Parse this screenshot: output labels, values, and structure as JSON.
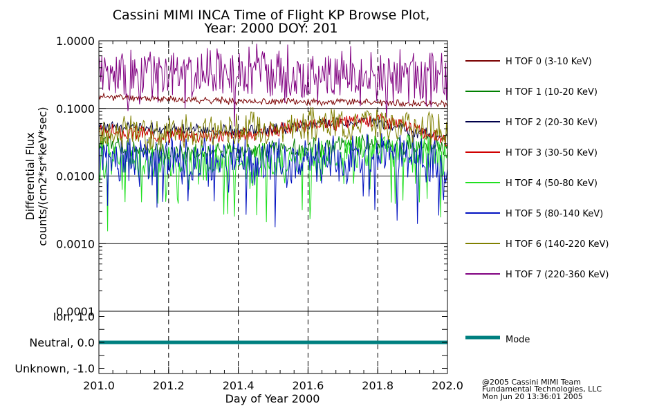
{
  "chart_data": {
    "type": "line",
    "title": "Cassini MIMI INCA Time of Flight KP Browse Plot,",
    "subtitle": "Year: 2000 DOY: 201",
    "xlabel": "Day of Year 2000",
    "ylabel": "Differential Flux",
    "ylabel2": "counts/(cm2*sr*keV*sec)",
    "xlim": [
      201.0,
      202.0
    ],
    "ylim": [
      0.0001,
      1.0
    ],
    "yscale": "log",
    "x_ticks": [
      201.0,
      201.2,
      201.4,
      201.6,
      201.8,
      202.0
    ],
    "x_tick_labels": [
      "201.0",
      "201.2",
      "201.4",
      "201.6",
      "201.8",
      "202.0"
    ],
    "y_ticks": [
      1.0,
      0.1,
      0.01,
      0.001,
      0.0001
    ],
    "y_tick_labels": [
      "1.0000",
      "0.1000",
      "0.0100",
      "0.0010",
      "0.0001"
    ],
    "grid": true,
    "legend_position": "right",
    "series": [
      {
        "name": "H TOF 0 (3-10 KeV)",
        "color": "#7a0000",
        "base": [
          [
            201.0,
            0.15
          ],
          [
            201.25,
            0.135
          ],
          [
            201.5,
            0.125
          ],
          [
            201.75,
            0.125
          ],
          [
            202.0,
            0.115
          ]
        ],
        "noise": 0.04,
        "spikes": 0.0,
        "seed": 11
      },
      {
        "name": "H TOF 1 (10-20 KeV)",
        "color": "#008000",
        "base": [
          [
            201.0,
            0.03
          ],
          [
            201.2,
            0.022
          ],
          [
            201.45,
            0.024
          ],
          [
            201.6,
            0.025
          ],
          [
            201.8,
            0.03
          ],
          [
            202.0,
            0.025
          ]
        ],
        "noise": 0.12,
        "spikes": 0.0,
        "seed": 12
      },
      {
        "name": "H TOF 2 (20-30 KeV)",
        "color": "#00004a",
        "base": [
          [
            201.0,
            0.055
          ],
          [
            201.2,
            0.05
          ],
          [
            201.4,
            0.045
          ],
          [
            201.6,
            0.055
          ],
          [
            201.78,
            0.065
          ],
          [
            202.0,
            0.035
          ]
        ],
        "noise": 0.07,
        "spikes": 0.0,
        "seed": 13
      },
      {
        "name": "H TOF 3 (30-50 KeV)",
        "color": "#d00000",
        "base": [
          [
            201.0,
            0.045
          ],
          [
            201.2,
            0.04
          ],
          [
            201.4,
            0.04
          ],
          [
            201.6,
            0.055
          ],
          [
            201.8,
            0.07
          ],
          [
            202.0,
            0.035
          ]
        ],
        "noise": 0.09,
        "spikes": 0.0,
        "seed": 14
      },
      {
        "name": "H TOF 4 (50-80 KeV)",
        "color": "#20e020",
        "base": [
          [
            201.0,
            0.017
          ],
          [
            201.25,
            0.015
          ],
          [
            201.5,
            0.016
          ],
          [
            201.7,
            0.02
          ],
          [
            201.85,
            0.025
          ],
          [
            202.0,
            0.018
          ]
        ],
        "noise": 0.22,
        "spikes": 0.05,
        "seed": 15
      },
      {
        "name": "H TOF 5 (80-140 KeV)",
        "color": "#0010c0",
        "base": [
          [
            201.0,
            0.018
          ],
          [
            201.25,
            0.016
          ],
          [
            201.5,
            0.017
          ],
          [
            201.7,
            0.02
          ],
          [
            201.85,
            0.022
          ],
          [
            202.0,
            0.016
          ]
        ],
        "noise": 0.3,
        "spikes": 0.07,
        "seed": 16
      },
      {
        "name": "H TOF 6 (140-220 KeV)",
        "color": "#808000",
        "base": [
          [
            201.0,
            0.045
          ],
          [
            201.2,
            0.042
          ],
          [
            201.4,
            0.05
          ],
          [
            201.6,
            0.055
          ],
          [
            201.8,
            0.065
          ],
          [
            202.0,
            0.045
          ]
        ],
        "noise": 0.2,
        "spikes": 0.0,
        "seed": 17
      },
      {
        "name": "H TOF 7 (220-360 KeV)",
        "color": "#800080",
        "base": [
          [
            201.0,
            0.32
          ],
          [
            201.3,
            0.3
          ],
          [
            201.5,
            0.33
          ],
          [
            201.8,
            0.3
          ],
          [
            202.0,
            0.3
          ]
        ],
        "noise": 0.32,
        "spikes": 0.03,
        "seed": 18
      }
    ],
    "mode_panel": {
      "ylim": [
        -1.2,
        1.2
      ],
      "y_ticks": [
        1.0,
        0.0,
        -1.0
      ],
      "y_tick_labels": [
        "Ion, 1.0",
        "Neutral, 0.0",
        "Unknown, -1.0"
      ],
      "series": {
        "name": "Mode",
        "color": "#008080",
        "value": 0.0
      }
    }
  },
  "credits": {
    "line1": "@2005 Cassini MIMI Team",
    "line2": "Fundamental Technologies, LLC",
    "line3": "Mon Jun 20 13:36:01 2005"
  }
}
